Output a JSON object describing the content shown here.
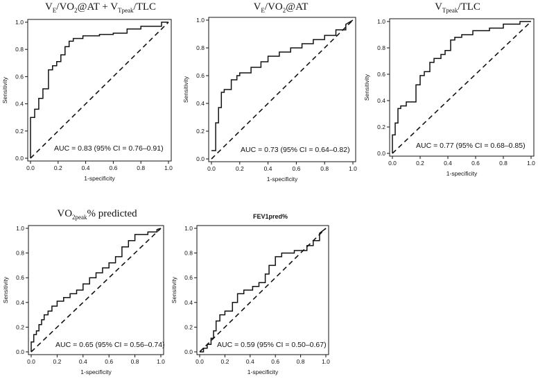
{
  "chart_data": [
    {
      "type": "line",
      "id": "p1",
      "title_parts": [
        {
          "t": "V"
        },
        {
          "sub": "E"
        },
        {
          "t": "/VO"
        },
        {
          "sub": "2"
        },
        {
          "t": "@AT + V"
        },
        {
          "sub": "Tpeak"
        },
        {
          "t": "/TLC"
        }
      ],
      "title_text": "VE/VO2@AT + VTpeak/TLC",
      "xlabel": "1-specificity",
      "ylabel": "Sensitivity",
      "xlim": [
        0,
        1
      ],
      "ylim": [
        0,
        1
      ],
      "xticks": [
        "0.0",
        "0.2",
        "0.4",
        "0.6",
        "0.8",
        "1.0"
      ],
      "yticks": [
        "0.0",
        "0.2",
        "0.4",
        "0.6",
        "0.8",
        "1.0"
      ],
      "annotation": "AUC = 0.83 (95% CI = 0.76–0.91)",
      "series": [
        {
          "name": "ROC curve",
          "x": [
            0,
            0,
            0.03,
            0.03,
            0.06,
            0.06,
            0.09,
            0.09,
            0.13,
            0.13,
            0.16,
            0.16,
            0.19,
            0.19,
            0.22,
            0.22,
            0.25,
            0.25,
            0.28,
            0.28,
            0.31,
            0.31,
            0.38,
            0.38,
            0.5,
            0.5,
            0.6,
            0.6,
            0.7,
            0.7,
            0.8,
            0.8,
            0.95,
            0.95,
            1.0
          ],
          "y": [
            0,
            0.3,
            0.3,
            0.36,
            0.36,
            0.44,
            0.44,
            0.51,
            0.51,
            0.65,
            0.65,
            0.68,
            0.68,
            0.71,
            0.71,
            0.76,
            0.76,
            0.82,
            0.82,
            0.86,
            0.86,
            0.88,
            0.88,
            0.9,
            0.9,
            0.91,
            0.91,
            0.92,
            0.92,
            0.95,
            0.95,
            0.97,
            0.97,
            1.0,
            1.0
          ]
        },
        {
          "name": "reference",
          "x": [
            0,
            1
          ],
          "y": [
            0,
            1
          ]
        }
      ]
    },
    {
      "type": "line",
      "id": "p2",
      "title_parts": [
        {
          "t": "V"
        },
        {
          "sub": "E"
        },
        {
          "t": "/VO"
        },
        {
          "sub": "2"
        },
        {
          "t": "@AT"
        }
      ],
      "title_text": "VE/VO2@AT",
      "xlabel": "1-specificity",
      "ylabel": "Sensitivity",
      "xlim": [
        0,
        1
      ],
      "ylim": [
        0,
        1
      ],
      "xticks": [
        "0.0",
        "0.2",
        "0.4",
        "0.6",
        "0.8",
        "1.0"
      ],
      "yticks": [
        "0.0",
        "0.2",
        "0.4",
        "0.6",
        "0.8",
        "1.0"
      ],
      "annotation": "AUC = 0.73 (95% CI = 0.64–0.82)",
      "series": [
        {
          "name": "ROC curve",
          "x": [
            0,
            0.03,
            0.03,
            0.05,
            0.05,
            0.07,
            0.07,
            0.09,
            0.09,
            0.14,
            0.14,
            0.18,
            0.18,
            0.2,
            0.2,
            0.28,
            0.28,
            0.35,
            0.35,
            0.4,
            0.4,
            0.48,
            0.48,
            0.56,
            0.56,
            0.64,
            0.64,
            0.72,
            0.72,
            0.8,
            0.8,
            0.88,
            0.88,
            0.95,
            0.95,
            1.0
          ],
          "y": [
            0.06,
            0.06,
            0.26,
            0.26,
            0.37,
            0.37,
            0.48,
            0.48,
            0.5,
            0.5,
            0.57,
            0.57,
            0.6,
            0.6,
            0.62,
            0.62,
            0.66,
            0.66,
            0.7,
            0.7,
            0.74,
            0.74,
            0.77,
            0.77,
            0.8,
            0.8,
            0.83,
            0.83,
            0.86,
            0.86,
            0.89,
            0.89,
            0.93,
            0.93,
            0.97,
            1.0
          ]
        },
        {
          "name": "reference",
          "x": [
            0,
            1
          ],
          "y": [
            0,
            1
          ]
        }
      ]
    },
    {
      "type": "line",
      "id": "p3",
      "title_parts": [
        {
          "t": "V"
        },
        {
          "sub": "Tpeak"
        },
        {
          "t": "/TLC"
        }
      ],
      "title_text": "VTpeak/TLC",
      "xlabel": "1-specificity",
      "ylabel": "Sensitivity",
      "xlim": [
        0,
        1
      ],
      "ylim": [
        0,
        1
      ],
      "xticks": [
        "0.0",
        "0.2",
        "0.4",
        "0.6",
        "0.8",
        "1.0"
      ],
      "yticks": [
        "0.0",
        "0.2",
        "0.4",
        "0.6",
        "0.8",
        "1.0"
      ],
      "annotation": "AUC = 0.77 (95% CI = 0.68–0.85)",
      "series": [
        {
          "name": "ROC curve",
          "x": [
            0,
            0,
            0.02,
            0.02,
            0.04,
            0.04,
            0.06,
            0.06,
            0.1,
            0.1,
            0.17,
            0.17,
            0.2,
            0.2,
            0.23,
            0.23,
            0.27,
            0.27,
            0.3,
            0.3,
            0.35,
            0.35,
            0.38,
            0.38,
            0.42,
            0.42,
            0.45,
            0.45,
            0.5,
            0.5,
            0.58,
            0.58,
            0.7,
            0.7,
            0.8,
            0.8,
            0.92,
            0.92,
            1.0
          ],
          "y": [
            0,
            0.14,
            0.14,
            0.23,
            0.23,
            0.34,
            0.34,
            0.36,
            0.36,
            0.39,
            0.39,
            0.52,
            0.52,
            0.59,
            0.59,
            0.62,
            0.62,
            0.69,
            0.69,
            0.72,
            0.72,
            0.75,
            0.75,
            0.78,
            0.78,
            0.86,
            0.86,
            0.88,
            0.88,
            0.9,
            0.9,
            0.93,
            0.93,
            0.95,
            0.95,
            0.98,
            0.98,
            1.0,
            1.0
          ]
        },
        {
          "name": "reference",
          "x": [
            0,
            1
          ],
          "y": [
            0,
            1
          ]
        }
      ]
    },
    {
      "type": "line",
      "id": "p4",
      "title_parts": [
        {
          "t": "VO"
        },
        {
          "sub": "2peak"
        },
        {
          "t": "% predicted"
        }
      ],
      "title_text": "VO2peak% predicted",
      "xlabel": "1-specificity",
      "ylabel": "Sensitivity",
      "xlim": [
        0,
        1
      ],
      "ylim": [
        0,
        1
      ],
      "xticks": [
        "0.0",
        "0.2",
        "0.4",
        "0.6",
        "0.8",
        "1.0"
      ],
      "yticks": [
        "0.0",
        "0.2",
        "0.4",
        "0.6",
        "0.8",
        "1.0"
      ],
      "annotation": "AUC = 0.65 (95% CI = 0.56–0.74)",
      "series": [
        {
          "name": "ROC curve",
          "x": [
            0,
            0,
            0.02,
            0.02,
            0.04,
            0.04,
            0.06,
            0.06,
            0.08,
            0.08,
            0.1,
            0.1,
            0.13,
            0.13,
            0.16,
            0.16,
            0.2,
            0.2,
            0.25,
            0.25,
            0.3,
            0.3,
            0.35,
            0.35,
            0.4,
            0.4,
            0.45,
            0.45,
            0.5,
            0.5,
            0.55,
            0.55,
            0.6,
            0.6,
            0.65,
            0.65,
            0.7,
            0.7,
            0.75,
            0.75,
            0.8,
            0.8,
            0.9,
            0.9,
            0.97,
            0.97,
            1.0
          ],
          "y": [
            0,
            0.08,
            0.08,
            0.14,
            0.14,
            0.17,
            0.17,
            0.22,
            0.22,
            0.26,
            0.26,
            0.3,
            0.3,
            0.33,
            0.33,
            0.37,
            0.37,
            0.41,
            0.41,
            0.44,
            0.44,
            0.47,
            0.47,
            0.5,
            0.5,
            0.55,
            0.55,
            0.6,
            0.6,
            0.64,
            0.64,
            0.68,
            0.68,
            0.72,
            0.72,
            0.77,
            0.77,
            0.85,
            0.85,
            0.9,
            0.9,
            0.95,
            0.95,
            0.97,
            0.97,
            0.99,
            1.0
          ]
        },
        {
          "name": "reference",
          "x": [
            0,
            1
          ],
          "y": [
            0,
            1
          ]
        }
      ]
    },
    {
      "type": "line",
      "id": "p5",
      "title_parts": [
        {
          "t": "FEV1pred%"
        }
      ],
      "title_text": "FEV1pred%",
      "title_small": true,
      "xlabel": "1-specificity",
      "ylabel": "Sensitivity",
      "xlim": [
        0,
        1
      ],
      "ylim": [
        0,
        1
      ],
      "xticks": [
        "0.0",
        "0.2",
        "0.4",
        "0.6",
        "0.8",
        "1.0"
      ],
      "yticks": [
        "0.0",
        "0.2",
        "0.4",
        "0.6",
        "0.8",
        "1.0"
      ],
      "annotation": "AUC = 0.59 (95% CI = 0.50–0.67)",
      "series": [
        {
          "name": "ROC curve",
          "x": [
            0,
            0.03,
            0.03,
            0.06,
            0.06,
            0.09,
            0.09,
            0.11,
            0.11,
            0.13,
            0.13,
            0.16,
            0.16,
            0.2,
            0.2,
            0.26,
            0.26,
            0.3,
            0.3,
            0.35,
            0.35,
            0.42,
            0.42,
            0.47,
            0.47,
            0.52,
            0.52,
            0.55,
            0.55,
            0.6,
            0.6,
            0.65,
            0.65,
            0.75,
            0.75,
            0.85,
            0.85,
            0.9,
            0.9,
            0.95,
            0.95,
            1.0
          ],
          "y": [
            0,
            0,
            0.03,
            0.03,
            0.06,
            0.06,
            0.11,
            0.11,
            0.17,
            0.17,
            0.25,
            0.25,
            0.3,
            0.3,
            0.33,
            0.33,
            0.4,
            0.4,
            0.47,
            0.47,
            0.5,
            0.5,
            0.53,
            0.53,
            0.56,
            0.56,
            0.63,
            0.63,
            0.7,
            0.7,
            0.77,
            0.77,
            0.8,
            0.8,
            0.82,
            0.82,
            0.86,
            0.86,
            0.9,
            0.9,
            0.96,
            1.0
          ]
        },
        {
          "name": "reference",
          "x": [
            0,
            1
          ],
          "y": [
            0,
            1
          ]
        }
      ]
    }
  ]
}
